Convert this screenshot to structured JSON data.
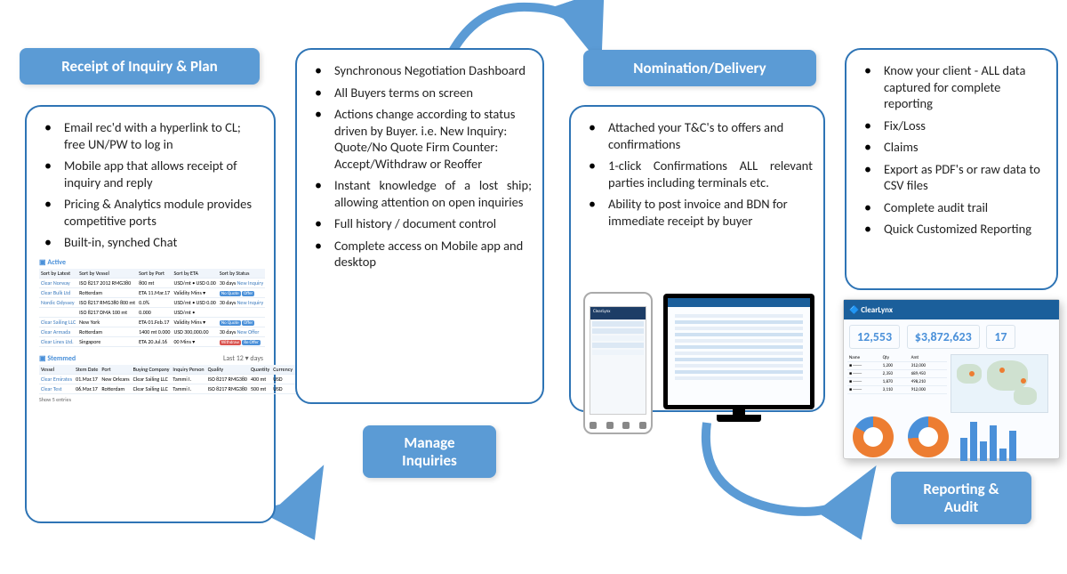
{
  "colors": {
    "accent": "#5b9bd5",
    "border": "#2e74b5",
    "orange": "#ed7d31",
    "blue": "#4a90d9"
  },
  "cols": {
    "receipt": {
      "title": "Receipt of Inquiry & Plan",
      "bullets": [
        "Email rec'd with a hyperlink to CL; free UN/PW to log in",
        "Mobile app that allows receipt of inquiry and reply",
        "Pricing & Analytics module provides competitive ports",
        "Built-in, synched Chat"
      ],
      "dash": {
        "active": "Active",
        "stemmed": "Stemmed",
        "sorts": [
          "Sort by Latest",
          "Sort by Vessel",
          "Sort by Port",
          "Sort by ETA",
          "Sort by Status"
        ],
        "names": [
          "Clear Norway",
          "Clear Bulk Ltd",
          "Nordic Odyssey",
          "Clear Sailing LLC",
          "Clear Armada",
          "Clear Lines Ltd."
        ],
        "ports": [
          "Rotterdam",
          "New York",
          "Rotterdam",
          "Singapore"
        ],
        "btnNoQuote": "No Quote",
        "btnOffer": "Offer",
        "btnNewInquiry": "New Inquiry",
        "btnNewOffer": "New Offer",
        "btnWithdraw": "Withdraw",
        "btnReoffer": "Re Offer",
        "stemmedRows": [
          "Clear Emirates",
          "Clear Test"
        ],
        "buyer": "Clear Sailing LLC",
        "last": "Last 12 ▾ days",
        "show": "Show 5 entries"
      }
    },
    "manage": {
      "title": "Manage Inquiries",
      "bullets": [
        "Synchronous Negotiation Dashboard",
        "All Buyers terms on screen",
        "Actions change according to status driven by Buyer. i.e. New Inquiry: Quote/No Quote Firm Counter:\nAccept/Withdraw or Reoffer",
        "Instant knowledge of a lost ship; allowing attention on open inquiries",
        "Full history / document control",
        "Complete access on Mobile app and desktop"
      ]
    },
    "nom": {
      "title": "Nomination/Delivery",
      "bullets": [
        "Attached your T&C's to offers and confirmations",
        "1-click Confirmations ALL relevant parties including terminals etc.",
        "Ability to post invoice and BDN for immediate receipt by buyer"
      ],
      "phoneBrand": "ClearLynx"
    },
    "report": {
      "title": "Reporting & Audit",
      "bullets": [
        "Know your client - ALL data captured for complete reporting",
        "Fix/Loss",
        "Claims",
        "Export as PDF's or raw data to CSV files",
        "Complete audit trail",
        "Quick Customized Reporting"
      ],
      "dash": {
        "brand": "ClearLynx",
        "metric1": "12,553",
        "metric2": "$3,872,623",
        "metric3": "17",
        "donut1": "81%",
        "donut2": "74%",
        "bars": [
          26,
          44,
          22,
          40,
          14,
          34
        ]
      }
    }
  }
}
